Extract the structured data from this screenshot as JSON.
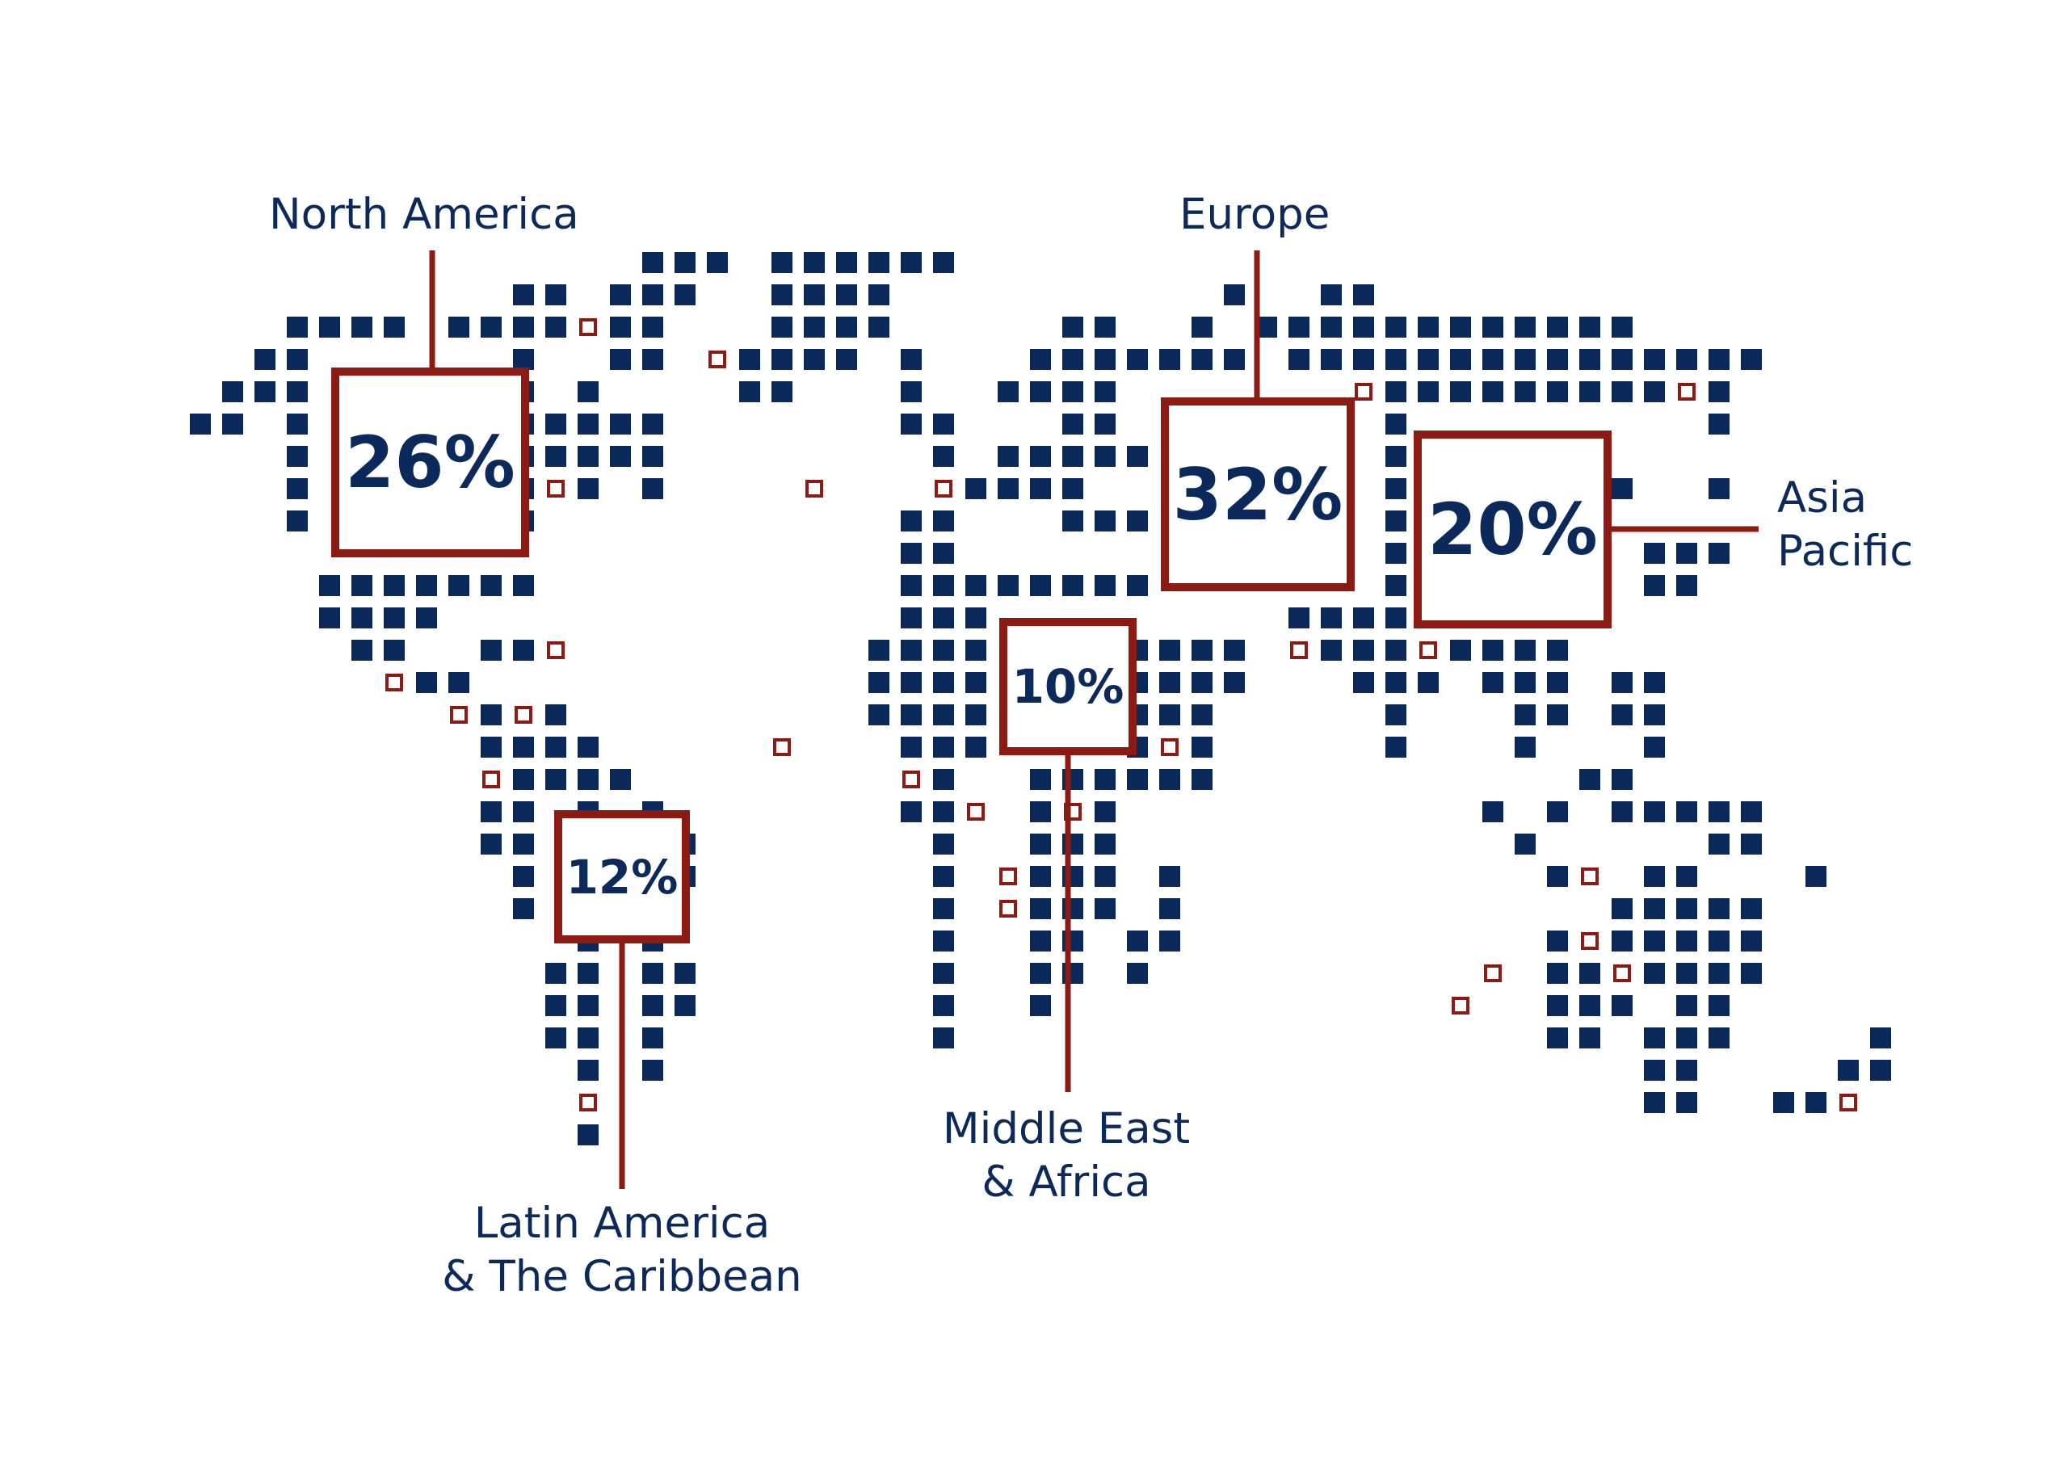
{
  "colors": {
    "land": "#0b2a5b",
    "marker": "#8b1a13",
    "background": "#ffffff"
  },
  "regions": [
    {
      "id": "north-america",
      "label_lines": [
        "North America"
      ],
      "share": "26%"
    },
    {
      "id": "latin-america",
      "label_lines": [
        "Latin America",
        "& The Caribbean"
      ],
      "share": "12%"
    },
    {
      "id": "europe",
      "label_lines": [
        "Europe"
      ],
      "share": "32%"
    },
    {
      "id": "middle-east-africa",
      "label_lines": [
        "Middle East",
        "& Africa"
      ],
      "share": "10%"
    },
    {
      "id": "asia-pacific",
      "label_lines": [
        "Asia",
        "Pacific"
      ],
      "share": "20%"
    }
  ]
}
